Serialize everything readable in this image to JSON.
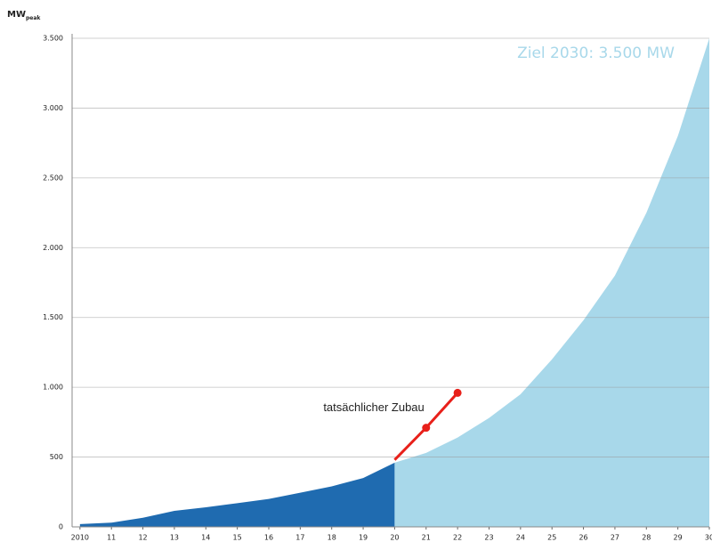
{
  "chart_data": {
    "type": "area",
    "y_label": "MW",
    "y_label_sub": "peak",
    "annotation": "Ziel 2030: 3.500 MW",
    "xlim": [
      2009.75,
      2030
    ],
    "xticks": [
      2010,
      {
        "value": 2011,
        "label": "11"
      },
      {
        "value": 2012,
        "label": "12"
      },
      {
        "value": 2013,
        "label": "13"
      },
      {
        "value": 2014,
        "label": "14"
      },
      {
        "value": 2015,
        "label": "15"
      },
      {
        "value": 2016,
        "label": "16"
      },
      {
        "value": 2017,
        "label": "17"
      },
      {
        "value": 2018,
        "label": "18"
      },
      {
        "value": 2019,
        "label": "19"
      },
      {
        "value": 2020,
        "label": "20"
      },
      {
        "value": 2021,
        "label": "21"
      },
      {
        "value": 2022,
        "label": "22"
      },
      {
        "value": 2023,
        "label": "23"
      },
      {
        "value": 2024,
        "label": "24"
      },
      {
        "value": 2025,
        "label": "25"
      },
      {
        "value": 2026,
        "label": "26"
      },
      {
        "value": 2027,
        "label": "27"
      },
      {
        "value": 2028,
        "label": "28"
      },
      {
        "value": 2029,
        "label": "29"
      },
      {
        "value": 2030,
        "label": "30"
      }
    ],
    "ylim": [
      0,
      3500
    ],
    "yticks": [
      0,
      500,
      {
        "value": 1000,
        "label": "1.000"
      },
      {
        "value": 1500,
        "label": "1.500"
      },
      {
        "value": 2000,
        "label": "2.000"
      },
      {
        "value": 2500,
        "label": "2.500"
      },
      {
        "value": 3000,
        "label": "3.000"
      },
      {
        "value": 3500,
        "label": "3.500"
      }
    ],
    "grid": true,
    "series": [
      {
        "type": "area",
        "color": "#1f6bb0",
        "x": [
          2010,
          2011,
          2012,
          2013,
          2014,
          2015,
          2016,
          2017,
          2018,
          2019,
          2020
        ],
        "values": [
          20,
          30,
          65,
          115,
          140,
          170,
          200,
          245,
          290,
          350,
          460
        ]
      },
      {
        "type": "area",
        "color": "#a8d8ea",
        "x": [
          2020,
          2021,
          2022,
          2023,
          2024,
          2025,
          2026,
          2027,
          2028,
          2029,
          2030
        ],
        "values": [
          460,
          530,
          640,
          780,
          950,
          1200,
          1480,
          1800,
          2250,
          2800,
          3500
        ]
      },
      {
        "type": "line",
        "name": "tatsächlicher Zubau",
        "color": "#e8201a",
        "x": [
          2020,
          2021,
          2022
        ],
        "values": [
          480,
          710,
          960
        ]
      }
    ]
  }
}
